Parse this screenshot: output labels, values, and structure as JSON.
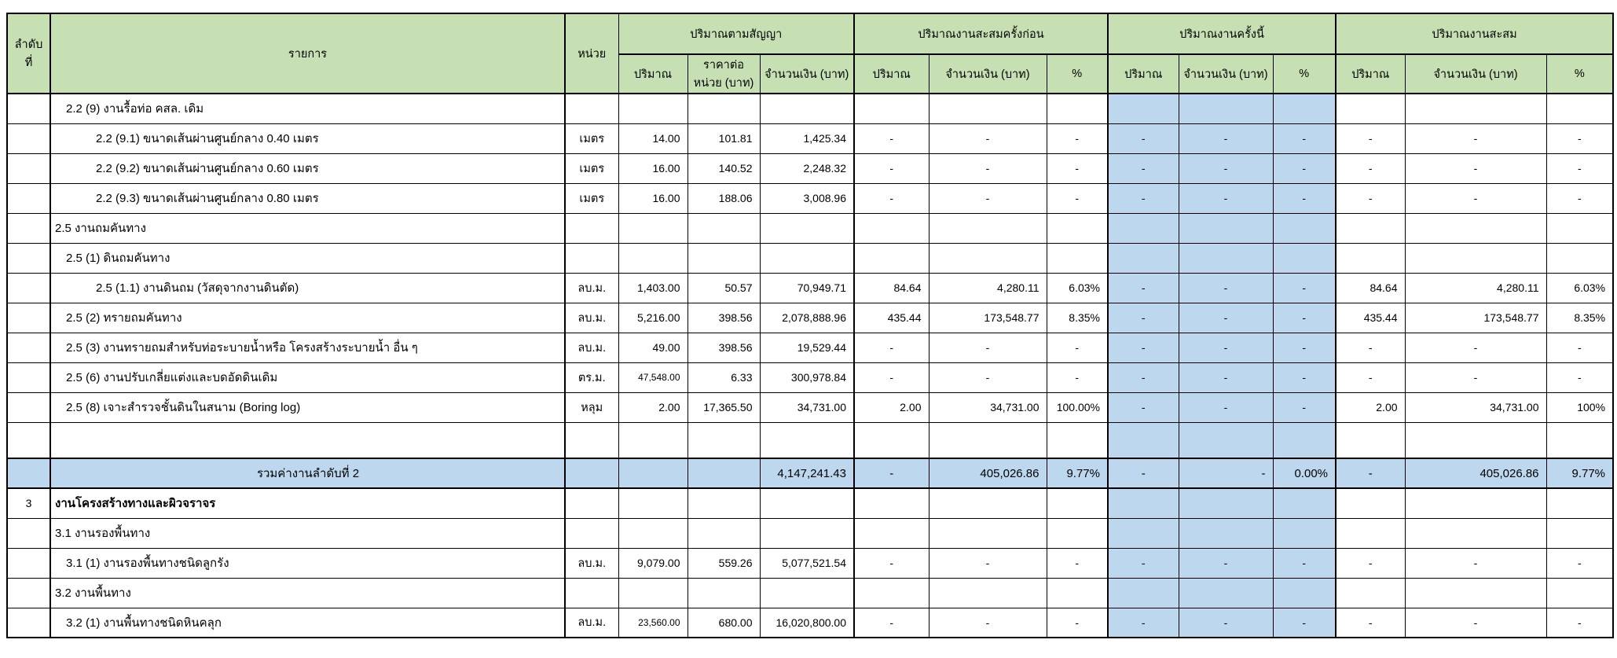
{
  "colors": {
    "header_green": "#c6e0b4",
    "highlight_blue": "#bdd7ee",
    "border": "#000000"
  },
  "header": {
    "col_no": "ลำดับที่",
    "col_item": "รายการ",
    "col_unit": "หน่วย",
    "groups": [
      {
        "label": "ปริมาณตามสัญญา",
        "sub": [
          "ปริมาณ",
          "ราคาต่อหน่วย (บาท)",
          "จำนวนเงิน (บาท)"
        ]
      },
      {
        "label": "ปริมาณงานสะสมครั้งก่อน",
        "sub": [
          "ปริมาณ",
          "จำนวนเงิน (บาท)",
          "%"
        ]
      },
      {
        "label": "ปริมาณงานครั้งนี้",
        "sub": [
          "ปริมาณ",
          "จำนวนเงิน (บาท)",
          "%"
        ]
      },
      {
        "label": "ปริมาณงานสะสม",
        "sub": [
          "ปริมาณ",
          "จำนวนเงิน (บาท)",
          "%"
        ]
      }
    ]
  },
  "rows": [
    {
      "type": "section",
      "no": "",
      "item": "2.2 (9) งานรื้อท่อ คสล. เดิม",
      "indent": 1,
      "unit": "",
      "cells": [
        "",
        "",
        "",
        "",
        "",
        "",
        "",
        "",
        "",
        "",
        "",
        ""
      ]
    },
    {
      "type": "item",
      "no": "",
      "item": "2.2 (9.1) ขนาดเส้นผ่านศูนย์กลาง 0.40 เมตร",
      "indent": 2,
      "unit": "เมตร",
      "cells": [
        "14.00",
        "101.81",
        "1,425.34",
        "-",
        "-",
        "-",
        "-",
        "-",
        "-",
        "-",
        "-",
        "-"
      ]
    },
    {
      "type": "item",
      "no": "",
      "item": "2.2 (9.2) ขนาดเส้นผ่านศูนย์กลาง 0.60 เมตร",
      "indent": 2,
      "unit": "เมตร",
      "cells": [
        "16.00",
        "140.52",
        "2,248.32",
        "-",
        "-",
        "-",
        "-",
        "-",
        "-",
        "-",
        "-",
        "-"
      ]
    },
    {
      "type": "item",
      "no": "",
      "item": "2.2 (9.3) ขนาดเส้นผ่านศูนย์กลาง 0.80 เมตร",
      "indent": 2,
      "unit": "เมตร",
      "cells": [
        "16.00",
        "188.06",
        "3,008.96",
        "-",
        "-",
        "-",
        "-",
        "-",
        "-",
        "-",
        "-",
        "-"
      ]
    },
    {
      "type": "section",
      "no": "",
      "item": "2.5 งานถมคันทาง",
      "indent": 0,
      "unit": "",
      "cells": [
        "",
        "",
        "",
        "",
        "",
        "",
        "",
        "",
        "",
        "",
        "",
        ""
      ]
    },
    {
      "type": "section",
      "no": "",
      "item": "2.5 (1) ดินถมคันทาง",
      "indent": 1,
      "unit": "",
      "cells": [
        "",
        "",
        "",
        "",
        "",
        "",
        "",
        "",
        "",
        "",
        "",
        ""
      ]
    },
    {
      "type": "item",
      "no": "",
      "item": "2.5 (1.1) งานดินถม (วัสดุจากงานดินตัด)",
      "indent": 2,
      "unit": "ลบ.ม.",
      "cells": [
        "1,403.00",
        "50.57",
        "70,949.71",
        "84.64",
        "4,280.11",
        "6.03%",
        "-",
        "-",
        "-",
        "84.64",
        "4,280.11",
        "6.03%"
      ]
    },
    {
      "type": "item",
      "no": "",
      "item": "2.5 (2) ทรายถมคันทาง",
      "indent": 1,
      "unit": "ลบ.ม.",
      "cells": [
        "5,216.00",
        "398.56",
        "2,078,888.96",
        "435.44",
        "173,548.77",
        "8.35%",
        "-",
        "-",
        "-",
        "435.44",
        "173,548.77",
        "8.35%"
      ]
    },
    {
      "type": "item",
      "no": "",
      "item": "2.5 (3) งานทรายถมสำหรับท่อระบายน้ำหรือ โครงสร้างระบายน้ำ อื่น ๆ",
      "indent": 1,
      "unit": "ลบ.ม.",
      "cells": [
        "49.00",
        "398.56",
        "19,529.44",
        "-",
        "-",
        "-",
        "-",
        "-",
        "-",
        "-",
        "-",
        "-"
      ]
    },
    {
      "type": "item",
      "no": "",
      "item": "2.5 (6) งานปรับเกลี่ยแต่งและบดอัดดินเดิม",
      "indent": 1,
      "unit": "ตร.ม.",
      "small": [
        0
      ],
      "cells": [
        "47,548.00",
        "6.33",
        "300,978.84",
        "-",
        "-",
        "-",
        "-",
        "-",
        "-",
        "-",
        "-",
        "-"
      ]
    },
    {
      "type": "item",
      "no": "",
      "item": "2.5 (8) เจาะสำรวจชั้นดินในสนาม (Boring log)",
      "indent": 1,
      "unit": "หลุม",
      "cells": [
        "2.00",
        "17,365.50",
        "34,731.00",
        "2.00",
        "34,731.00",
        "100.00%",
        "-",
        "-",
        "-",
        "2.00",
        "34,731.00",
        "100%"
      ]
    },
    {
      "type": "empty",
      "no": "",
      "item": "",
      "indent": 0,
      "unit": "",
      "cells": [
        "",
        "",
        "",
        "",
        "",
        "",
        "",
        "",
        "",
        "",
        "",
        ""
      ]
    },
    {
      "type": "total",
      "no": "",
      "item": "รวมค่างานลำดับที่ 2",
      "indent": 0,
      "unit": "",
      "cells": [
        "",
        "",
        "4,147,241.43",
        "-",
        "405,026.86",
        "9.77%",
        "-",
        "-",
        "0.00%",
        "-",
        "405,026.86",
        "9.77%"
      ]
    },
    {
      "type": "section",
      "no": "3",
      "item": "งานโครงสร้างทางและผิวจราจร",
      "indent": 0,
      "bold": true,
      "unit": "",
      "cells": [
        "",
        "",
        "",
        "",
        "",
        "",
        "",
        "",
        "",
        "",
        "",
        ""
      ]
    },
    {
      "type": "section",
      "no": "",
      "item": "3.1 งานรองพื้นทาง",
      "indent": 0,
      "unit": "",
      "cells": [
        "",
        "",
        "",
        "",
        "",
        "",
        "",
        "",
        "",
        "",
        "",
        ""
      ]
    },
    {
      "type": "item",
      "no": "",
      "item": "3.1 (1) งานรองพื้นทางชนิดลูกรัง",
      "indent": 1,
      "unit": "ลบ.ม.",
      "cells": [
        "9,079.00",
        "559.26",
        "5,077,521.54",
        "-",
        "-",
        "-",
        "-",
        "-",
        "-",
        "-",
        "-",
        "-"
      ]
    },
    {
      "type": "section",
      "no": "",
      "item": "3.2 งานพื้นทาง",
      "indent": 0,
      "unit": "",
      "cells": [
        "",
        "",
        "",
        "",
        "",
        "",
        "",
        "",
        "",
        "",
        "",
        ""
      ]
    },
    {
      "type": "item",
      "no": "",
      "item": "3.2 (1) งานพื้นทางชนิดหินคลุก",
      "indent": 1,
      "unit": "ลบ.ม.",
      "small": [
        0
      ],
      "cells": [
        "23,560.00",
        "680.00",
        "16,020,800.00",
        "-",
        "-",
        "-",
        "-",
        "-",
        "-",
        "-",
        "-",
        "-"
      ]
    }
  ]
}
